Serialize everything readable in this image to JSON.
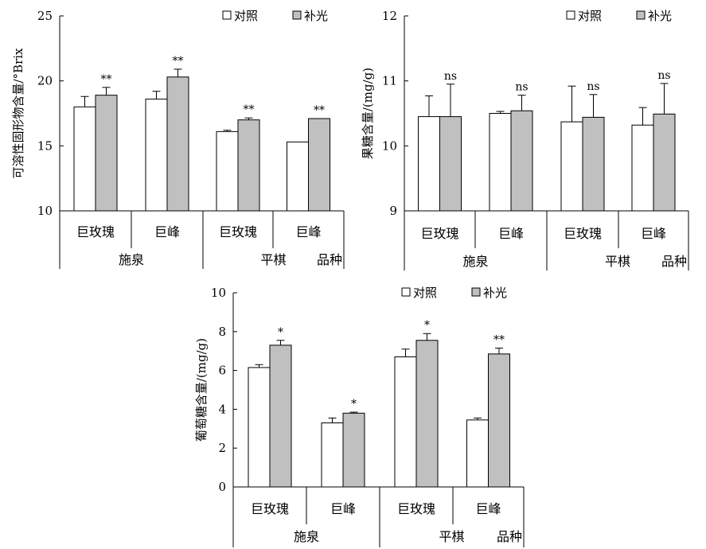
{
  "colors": {
    "control": "#ffffff",
    "treatment": "#c0c0c0",
    "stroke": "#000000"
  },
  "chart_data": [
    {
      "type": "bar",
      "ylabel": "可溶性固形物含量/°Brix",
      "ylim": [
        10,
        25
      ],
      "yticks": [
        10,
        15,
        20,
        25
      ],
      "legend": {
        "placement": "top-right",
        "entries": [
          "对照",
          "补光"
        ]
      },
      "categories": [
        "巨玫瑰",
        "巨峰",
        "巨玫瑰",
        "巨峰"
      ],
      "groups": [
        "施泉",
        "平棋"
      ],
      "axis_title": "品种",
      "series": [
        {
          "name": "对照",
          "values": [
            18.0,
            18.6,
            16.1,
            15.3
          ],
          "errors": [
            0.8,
            0.6,
            0.1,
            0.0
          ]
        },
        {
          "name": "补光",
          "values": [
            18.9,
            20.3,
            17.0,
            17.1
          ],
          "errors": [
            0.6,
            0.6,
            0.15,
            0.0
          ]
        }
      ],
      "significance": [
        "**",
        "**",
        "**",
        "**"
      ]
    },
    {
      "type": "bar",
      "ylabel": "果糖含量/(mg/g)",
      "ylim": [
        9,
        12
      ],
      "yticks": [
        9,
        10,
        11,
        12
      ],
      "legend": {
        "placement": "top-right",
        "entries": [
          "对照",
          "补光"
        ]
      },
      "categories": [
        "巨玫瑰",
        "巨峰",
        "巨玫瑰",
        "巨峰"
      ],
      "groups": [
        "施泉",
        "平棋"
      ],
      "axis_title": "品种",
      "series": [
        {
          "name": "对照",
          "values": [
            10.45,
            10.5,
            10.37,
            10.32
          ],
          "errors": [
            0.32,
            0.03,
            0.55,
            0.27
          ]
        },
        {
          "name": "补光",
          "values": [
            10.45,
            10.54,
            10.44,
            10.49
          ],
          "errors": [
            0.5,
            0.24,
            0.35,
            0.47
          ]
        }
      ],
      "significance": [
        "ns",
        "ns",
        "ns",
        "ns"
      ]
    },
    {
      "type": "bar",
      "ylabel": "葡萄糖含量/(mg/g)",
      "ylim": [
        0,
        10
      ],
      "yticks": [
        0,
        2,
        4,
        6,
        8,
        10
      ],
      "legend": {
        "placement": "top-right",
        "entries": [
          "对照",
          "补光"
        ]
      },
      "categories": [
        "巨玫瑰",
        "巨峰",
        "巨玫瑰",
        "巨峰"
      ],
      "groups": [
        "施泉",
        "平棋"
      ],
      "axis_title": "品种",
      "series": [
        {
          "name": "对照",
          "values": [
            6.15,
            3.3,
            6.7,
            3.45
          ],
          "errors": [
            0.15,
            0.25,
            0.4,
            0.1
          ]
        },
        {
          "name": "补光",
          "values": [
            7.3,
            3.8,
            7.55,
            6.85
          ],
          "errors": [
            0.25,
            0.05,
            0.35,
            0.3
          ]
        }
      ],
      "significance": [
        "*",
        "*",
        "*",
        "**"
      ]
    }
  ]
}
